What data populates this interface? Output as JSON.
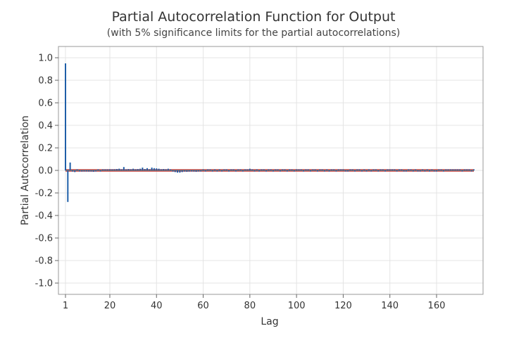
{
  "chart_data": {
    "type": "bar",
    "title": "Partial Autocorrelation Function for Output",
    "subtitle": "(with 5% significance limits for the partial autocorrelations)",
    "xlabel": "Lag",
    "ylabel": "Partial Autocorrelation",
    "xlim": [
      1,
      176
    ],
    "ylim": [
      -1.1,
      1.1
    ],
    "x_ticks": [
      1,
      20,
      40,
      60,
      80,
      100,
      120,
      140,
      160
    ],
    "y_ticks": [
      1.0,
      0.8,
      0.6,
      0.4,
      0.2,
      0.0,
      -0.2,
      -0.4,
      -0.6,
      -0.8,
      -1.0
    ],
    "y_tick_labels": [
      "1.0",
      "0.8",
      "0.6",
      "0.4",
      "0.2",
      "0.0",
      "-0.2",
      "-0.4",
      "-0.6",
      "-0.8",
      "-1.0"
    ],
    "grid": true,
    "significance_limits": [
      0.0075,
      -0.0075
    ],
    "colors": {
      "bar": "#1f5fa8",
      "limit": "#d0403f",
      "grid": "#e4e4e4",
      "frame": "#999999"
    },
    "series": [
      {
        "lags": [
          1,
          2,
          3,
          4,
          5,
          6,
          7,
          8,
          9,
          10,
          11,
          12,
          13,
          14,
          15,
          16,
          17,
          18,
          19,
          20,
          21,
          22,
          23,
          24,
          25,
          26,
          27,
          28,
          29,
          30,
          31,
          32,
          33,
          34,
          35,
          36,
          37,
          38,
          39,
          40,
          41,
          42,
          43,
          44,
          45,
          46,
          47,
          48,
          49,
          50,
          51,
          52,
          53,
          54,
          55,
          56,
          57,
          58,
          59,
          60,
          61,
          62,
          63,
          64,
          65,
          66,
          67,
          68,
          69,
          70,
          71,
          72,
          73,
          74,
          75,
          76,
          77,
          78,
          79,
          80,
          81,
          82,
          83,
          84,
          85,
          86,
          87,
          88,
          89,
          90,
          91,
          92,
          93,
          94,
          95,
          96,
          97,
          98,
          99,
          100,
          101,
          102,
          103,
          104,
          105,
          106,
          107,
          108,
          109,
          110,
          111,
          112,
          113,
          114,
          115,
          116,
          117,
          118,
          119,
          120,
          121,
          122,
          123,
          124,
          125,
          126,
          127,
          128,
          129,
          130,
          131,
          132,
          133,
          134,
          135,
          136,
          137,
          138,
          139,
          140,
          141,
          142,
          143,
          144,
          145,
          146,
          147,
          148,
          149,
          150,
          151,
          152,
          153,
          154,
          155,
          156,
          157,
          158,
          159,
          160,
          161,
          162,
          163,
          164,
          165,
          166,
          167,
          168,
          169,
          170,
          171,
          172,
          173,
          174,
          175,
          176
        ],
        "values": [
          0.95,
          -0.28,
          0.07,
          -0.01,
          -0.015,
          0.005,
          -0.005,
          -0.01,
          -0.008,
          -0.005,
          -0.01,
          -0.01,
          -0.012,
          -0.005,
          0.0,
          -0.005,
          0.003,
          0.0,
          0.005,
          0.01,
          0.008,
          0.01,
          0.012,
          0.015,
          0.01,
          0.03,
          0.005,
          0.012,
          0.01,
          0.015,
          0.01,
          0.012,
          0.015,
          0.025,
          0.012,
          0.02,
          0.01,
          0.025,
          0.02,
          0.018,
          0.015,
          0.01,
          0.012,
          0.01,
          0.015,
          0.005,
          -0.01,
          -0.015,
          -0.02,
          -0.02,
          -0.015,
          -0.01,
          -0.012,
          -0.01,
          -0.008,
          -0.01,
          -0.012,
          -0.008,
          -0.005,
          0.0,
          -0.005,
          0.005,
          0.004,
          -0.003,
          0.002,
          -0.002,
          0.003,
          -0.005,
          0.002,
          0.0,
          -0.004,
          0.003,
          0.008,
          -0.003,
          0.006,
          0.005,
          -0.002,
          0.004,
          0.0,
          0.015,
          0.005,
          -0.004,
          0.006,
          -0.003,
          0.004,
          0.003,
          -0.006,
          0.005,
          0.0,
          -0.003,
          0.004,
          0.002,
          -0.005,
          0.006,
          0.003,
          -0.002,
          0.004,
          0.005,
          -0.004,
          0.003,
          0.002,
          0.004,
          -0.003,
          0.005,
          0.002,
          -0.005,
          0.004,
          0.003,
          -0.004,
          0.005,
          0.002,
          -0.003,
          0.006,
          -0.002,
          0.004,
          0.003,
          -0.005,
          0.006,
          0.004,
          0.008,
          -0.002,
          -0.006,
          0.004,
          0.003,
          -0.005,
          0.002,
          0.004,
          -0.008,
          0.003,
          -0.006,
          0.005,
          -0.002,
          0.003,
          0.004,
          -0.003,
          0.002,
          0.005,
          -0.004,
          0.006,
          0.003,
          0.005,
          0.004,
          -0.003,
          0.002,
          0.005,
          -0.006,
          -0.008,
          0.003,
          0.004,
          -0.005,
          0.002,
          -0.004,
          -0.006,
          0.008,
          -0.005,
          0.003,
          -0.007,
          0.004,
          -0.008,
          -0.006,
          0.005,
          0.003,
          -0.006,
          0.004,
          0.006,
          0.005,
          0.008,
          0.003,
          0.006,
          0.004,
          -0.005,
          0.003,
          0.006,
          0.004,
          -0.004,
          0.003
        ]
      }
    ]
  }
}
